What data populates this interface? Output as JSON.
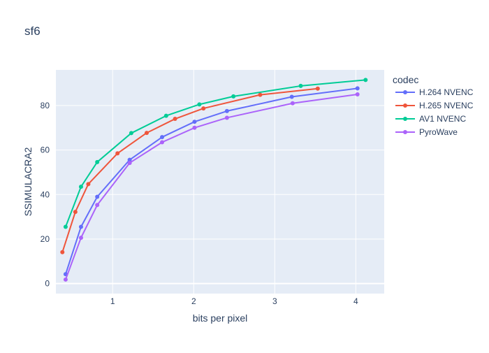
{
  "chart_data": {
    "type": "line",
    "title": "sf6",
    "xlabel": "bits per pixel",
    "ylabel": "SSIMULACRA2",
    "xlim": [
      0.3,
      4.35
    ],
    "ylim": [
      -4.5,
      96
    ],
    "x_ticks": [
      1,
      2,
      3,
      4
    ],
    "y_ticks": [
      0,
      20,
      40,
      60,
      80
    ],
    "grid": true,
    "legend_title": "codec",
    "legend_position": "right",
    "series": [
      {
        "name": "H.264 NVENC",
        "color": "#636efa",
        "points": [
          {
            "x": 0.42,
            "y": 4.2
          },
          {
            "x": 0.61,
            "y": 25.5
          },
          {
            "x": 0.81,
            "y": 39.0
          },
          {
            "x": 1.21,
            "y": 55.6
          },
          {
            "x": 1.61,
            "y": 65.8
          },
          {
            "x": 2.01,
            "y": 72.7
          },
          {
            "x": 2.41,
            "y": 77.5
          },
          {
            "x": 3.21,
            "y": 83.9
          },
          {
            "x": 4.02,
            "y": 87.7
          }
        ]
      },
      {
        "name": "H.265 NVENC",
        "color": "#ef553b",
        "points": [
          {
            "x": 0.38,
            "y": 14.1
          },
          {
            "x": 0.54,
            "y": 32.2
          },
          {
            "x": 0.7,
            "y": 44.7
          },
          {
            "x": 1.06,
            "y": 58.5
          },
          {
            "x": 1.42,
            "y": 67.7
          },
          {
            "x": 1.77,
            "y": 74.0
          },
          {
            "x": 2.12,
            "y": 78.7
          },
          {
            "x": 2.82,
            "y": 84.8
          },
          {
            "x": 3.53,
            "y": 87.6
          }
        ]
      },
      {
        "name": "AV1 NVENC",
        "color": "#00cc96",
        "points": [
          {
            "x": 0.42,
            "y": 25.5
          },
          {
            "x": 0.61,
            "y": 43.5
          },
          {
            "x": 0.81,
            "y": 54.6
          },
          {
            "x": 1.23,
            "y": 67.6
          },
          {
            "x": 1.66,
            "y": 75.4
          },
          {
            "x": 2.07,
            "y": 80.5
          },
          {
            "x": 2.49,
            "y": 84.1
          },
          {
            "x": 3.32,
            "y": 88.8
          },
          {
            "x": 4.12,
            "y": 91.5
          }
        ]
      },
      {
        "name": "PyroWave",
        "color": "#ab63fa",
        "points": [
          {
            "x": 0.42,
            "y": 1.8
          },
          {
            "x": 0.61,
            "y": 20.6
          },
          {
            "x": 0.81,
            "y": 35.3
          },
          {
            "x": 1.21,
            "y": 54.2
          },
          {
            "x": 1.61,
            "y": 63.5
          },
          {
            "x": 2.01,
            "y": 70.0
          },
          {
            "x": 2.41,
            "y": 74.5
          },
          {
            "x": 3.22,
            "y": 81.0
          },
          {
            "x": 4.02,
            "y": 85.0
          }
        ]
      }
    ]
  }
}
